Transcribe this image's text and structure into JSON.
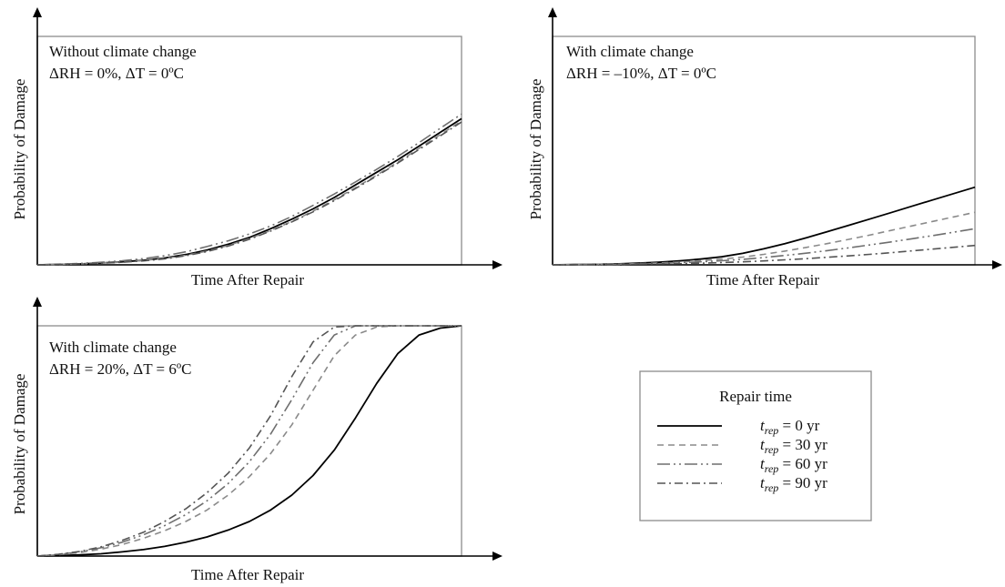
{
  "chart_data": [
    {
      "type": "line",
      "xlabel": "Time After Repair",
      "ylabel": "Probability of Damage",
      "annotation": [
        "Without climate change",
        "ΔRH = 0%, ΔT = 0ºC"
      ],
      "x": [
        0,
        0.05,
        0.1,
        0.15,
        0.2,
        0.25,
        0.3,
        0.35,
        0.4,
        0.45,
        0.5,
        0.55,
        0.6,
        0.65,
        0.7,
        0.75,
        0.8,
        0.85,
        0.9,
        0.95,
        1.0
      ],
      "series": [
        {
          "name": "t_rep = 0 yr",
          "values": [
            0.0,
            0.002,
            0.004,
            0.008,
            0.013,
            0.02,
            0.03,
            0.045,
            0.065,
            0.09,
            0.12,
            0.158,
            0.2,
            0.245,
            0.295,
            0.35,
            0.405,
            0.46,
            0.52,
            0.58,
            0.64
          ]
        },
        {
          "name": "t_rep = 30 yr",
          "values": [
            0.0,
            0.002,
            0.004,
            0.008,
            0.012,
            0.019,
            0.028,
            0.042,
            0.06,
            0.085,
            0.115,
            0.15,
            0.19,
            0.235,
            0.285,
            0.338,
            0.393,
            0.45,
            0.51,
            0.57,
            0.63
          ]
        },
        {
          "name": "t_rep = 60 yr",
          "values": [
            0.0,
            0.003,
            0.006,
            0.011,
            0.018,
            0.027,
            0.04,
            0.057,
            0.08,
            0.105,
            0.135,
            0.17,
            0.212,
            0.26,
            0.31,
            0.363,
            0.418,
            0.475,
            0.535,
            0.598,
            0.66
          ]
        },
        {
          "name": "t_rep = 90 yr",
          "values": [
            0.0,
            0.002,
            0.004,
            0.007,
            0.011,
            0.017,
            0.026,
            0.04,
            0.058,
            0.082,
            0.112,
            0.148,
            0.188,
            0.232,
            0.281,
            0.334,
            0.389,
            0.446,
            0.505,
            0.565,
            0.625
          ]
        }
      ]
    },
    {
      "type": "line",
      "xlabel": "Time After Repair",
      "ylabel": "Probability of Damage",
      "annotation": [
        "With climate change",
        "ΔRH = –10%, ΔT = 0ºC"
      ],
      "x": [
        0,
        0.05,
        0.1,
        0.15,
        0.2,
        0.25,
        0.3,
        0.35,
        0.4,
        0.45,
        0.5,
        0.55,
        0.6,
        0.65,
        0.7,
        0.75,
        0.8,
        0.85,
        0.9,
        0.95,
        1.0
      ],
      "series": [
        {
          "name": "t_rep = 0 yr",
          "values": [
            0.0,
            0.001,
            0.002,
            0.004,
            0.007,
            0.011,
            0.017,
            0.025,
            0.035,
            0.05,
            0.07,
            0.093,
            0.118,
            0.145,
            0.172,
            0.2,
            0.228,
            0.256,
            0.284,
            0.312,
            0.34
          ]
        },
        {
          "name": "t_rep = 30 yr",
          "values": [
            0.0,
            0.001,
            0.002,
            0.003,
            0.005,
            0.008,
            0.012,
            0.018,
            0.025,
            0.034,
            0.046,
            0.06,
            0.076,
            0.093,
            0.111,
            0.13,
            0.15,
            0.17,
            0.19,
            0.21,
            0.23
          ]
        },
        {
          "name": "t_rep = 60 yr",
          "values": [
            0.0,
            0.001,
            0.001,
            0.002,
            0.004,
            0.006,
            0.009,
            0.013,
            0.018,
            0.024,
            0.032,
            0.041,
            0.051,
            0.062,
            0.074,
            0.087,
            0.1,
            0.114,
            0.128,
            0.143,
            0.158
          ]
        },
        {
          "name": "t_rep = 90 yr",
          "values": [
            0.0,
            0.001,
            0.001,
            0.002,
            0.003,
            0.004,
            0.005,
            0.007,
            0.01,
            0.013,
            0.017,
            0.022,
            0.027,
            0.033,
            0.039,
            0.046,
            0.053,
            0.061,
            0.069,
            0.077,
            0.085
          ]
        }
      ]
    },
    {
      "type": "line",
      "xlabel": "Time After Repair",
      "ylabel": "Probability of Damage",
      "annotation": [
        "With climate change",
        "ΔRH = 20%, ΔT = 6ºC"
      ],
      "x": [
        0,
        0.05,
        0.1,
        0.15,
        0.2,
        0.25,
        0.3,
        0.35,
        0.4,
        0.45,
        0.5,
        0.55,
        0.6,
        0.65,
        0.7,
        0.75,
        0.8,
        0.85,
        0.9,
        0.95,
        1.0
      ],
      "series": [
        {
          "name": "t_rep = 0 yr",
          "values": [
            0.0,
            0.002,
            0.005,
            0.01,
            0.018,
            0.028,
            0.042,
            0.06,
            0.083,
            0.113,
            0.15,
            0.2,
            0.265,
            0.35,
            0.46,
            0.6,
            0.75,
            0.88,
            0.96,
            0.99,
            1.0
          ]
        },
        {
          "name": "t_rep = 30 yr",
          "values": [
            0.0,
            0.006,
            0.015,
            0.03,
            0.05,
            0.077,
            0.11,
            0.15,
            0.2,
            0.265,
            0.345,
            0.445,
            0.57,
            0.72,
            0.87,
            0.96,
            0.995,
            1.0,
            1.0,
            1.0,
            1.0
          ]
        },
        {
          "name": "t_rep = 60 yr",
          "values": [
            0.0,
            0.007,
            0.018,
            0.036,
            0.06,
            0.092,
            0.132,
            0.18,
            0.24,
            0.315,
            0.41,
            0.53,
            0.68,
            0.84,
            0.96,
            1.0,
            1.0,
            1.0,
            1.0,
            1.0,
            1.0
          ]
        },
        {
          "name": "t_rep = 90 yr",
          "values": [
            0.0,
            0.008,
            0.02,
            0.04,
            0.068,
            0.103,
            0.15,
            0.205,
            0.275,
            0.36,
            0.47,
            0.61,
            0.78,
            0.93,
            0.995,
            1.0,
            1.0,
            1.0,
            1.0,
            1.0,
            1.0
          ]
        }
      ]
    }
  ],
  "legend": {
    "title": "Repair time",
    "entries": [
      {
        "symbol": "t",
        "sub": "rep",
        "value": "= 0 yr"
      },
      {
        "symbol": "t",
        "sub": "rep",
        "value": "= 30 yr"
      },
      {
        "symbol": "t",
        "sub": "rep",
        "value": "= 60 yr"
      },
      {
        "symbol": "t",
        "sub": "rep",
        "value": "= 90 yr"
      }
    ]
  },
  "styles": {
    "series_colors": [
      "#000000",
      "#8a8a8a",
      "#6e6e6e",
      "#555555"
    ],
    "frame_color": "#8c8c8c",
    "axis_color": "#000000"
  }
}
